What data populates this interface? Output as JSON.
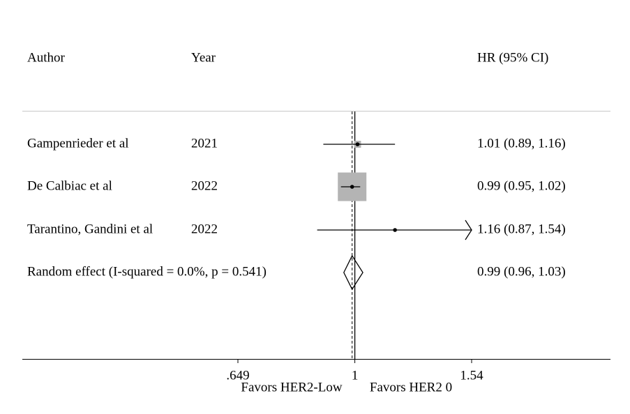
{
  "chart_data": {
    "type": "forest",
    "headers": {
      "author": "Author",
      "year": "Year",
      "estimate": "HR (95% CI)"
    },
    "rows": [
      {
        "author": "Gampenrieder et al",
        "year": "2021",
        "estimate": 1.01,
        "lower": 0.89,
        "upper": 1.16,
        "weight": 5.6,
        "label": "1.01 (0.89, 1.16)"
      },
      {
        "author": "De Calbiac et al",
        "year": "2022",
        "estimate": 0.99,
        "lower": 0.95,
        "upper": 1.02,
        "weight": 94.2,
        "label": "0.99 (0.95, 1.02)"
      },
      {
        "author": "Tarantino, Gandini et al",
        "year": "2022",
        "estimate": 1.16,
        "lower": 0.87,
        "upper": 1.54,
        "weight": 0.2,
        "label": "1.16 (0.87, 1.54)"
      }
    ],
    "overall": {
      "author": "Random effect (I-squared = 0.0%, p = 0.541)",
      "estimate": 0.99,
      "lower": 0.96,
      "upper": 1.03,
      "label": "0.99 (0.96, 1.03)"
    },
    "log_scale": true,
    "null_value": 1,
    "xlim": [
      0.649,
      1.54
    ],
    "xticks": [
      {
        "value": 0.649,
        "label": ".649"
      },
      1,
      1.54
    ],
    "favors_left": "Favors HER2-Low",
    "favors_right": "Favors HER2 0",
    "square_color": "#b4b4b4",
    "line_color": "#000000"
  }
}
